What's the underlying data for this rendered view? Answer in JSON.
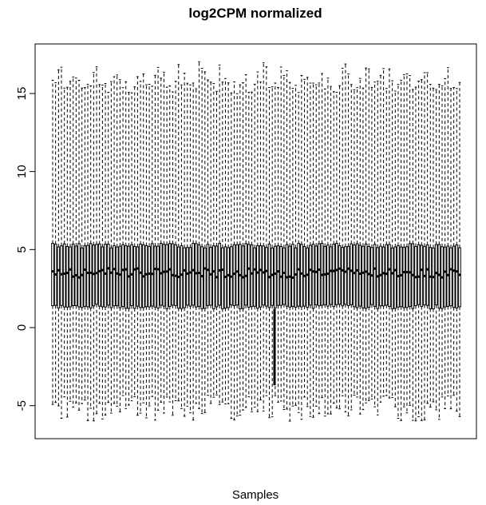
{
  "chart_data": {
    "type": "boxplot",
    "title": "log2CPM normalized",
    "xlabel": "Samples",
    "ylabel": "",
    "ylim": [
      -7,
      18
    ],
    "yticks": [
      -5,
      0,
      5,
      10,
      15
    ],
    "ytick_labels": [
      "-5",
      "0",
      "5",
      "10",
      "15"
    ],
    "grid": false,
    "legend": "none",
    "n_samples": 140,
    "box_color": "#000000",
    "whisker_style": "dashed",
    "summary_ranges": {
      "median": [
        3.2,
        3.8
      ],
      "q1": [
        1.2,
        1.5
      ],
      "q3": [
        5.1,
        5.4
      ],
      "whisker_low": [
        -6.0,
        -4.3
      ],
      "whisker_high": [
        13.6,
        17.3
      ]
    },
    "annotations": {
      "low_sample_whisker_top": -3.7
    }
  }
}
